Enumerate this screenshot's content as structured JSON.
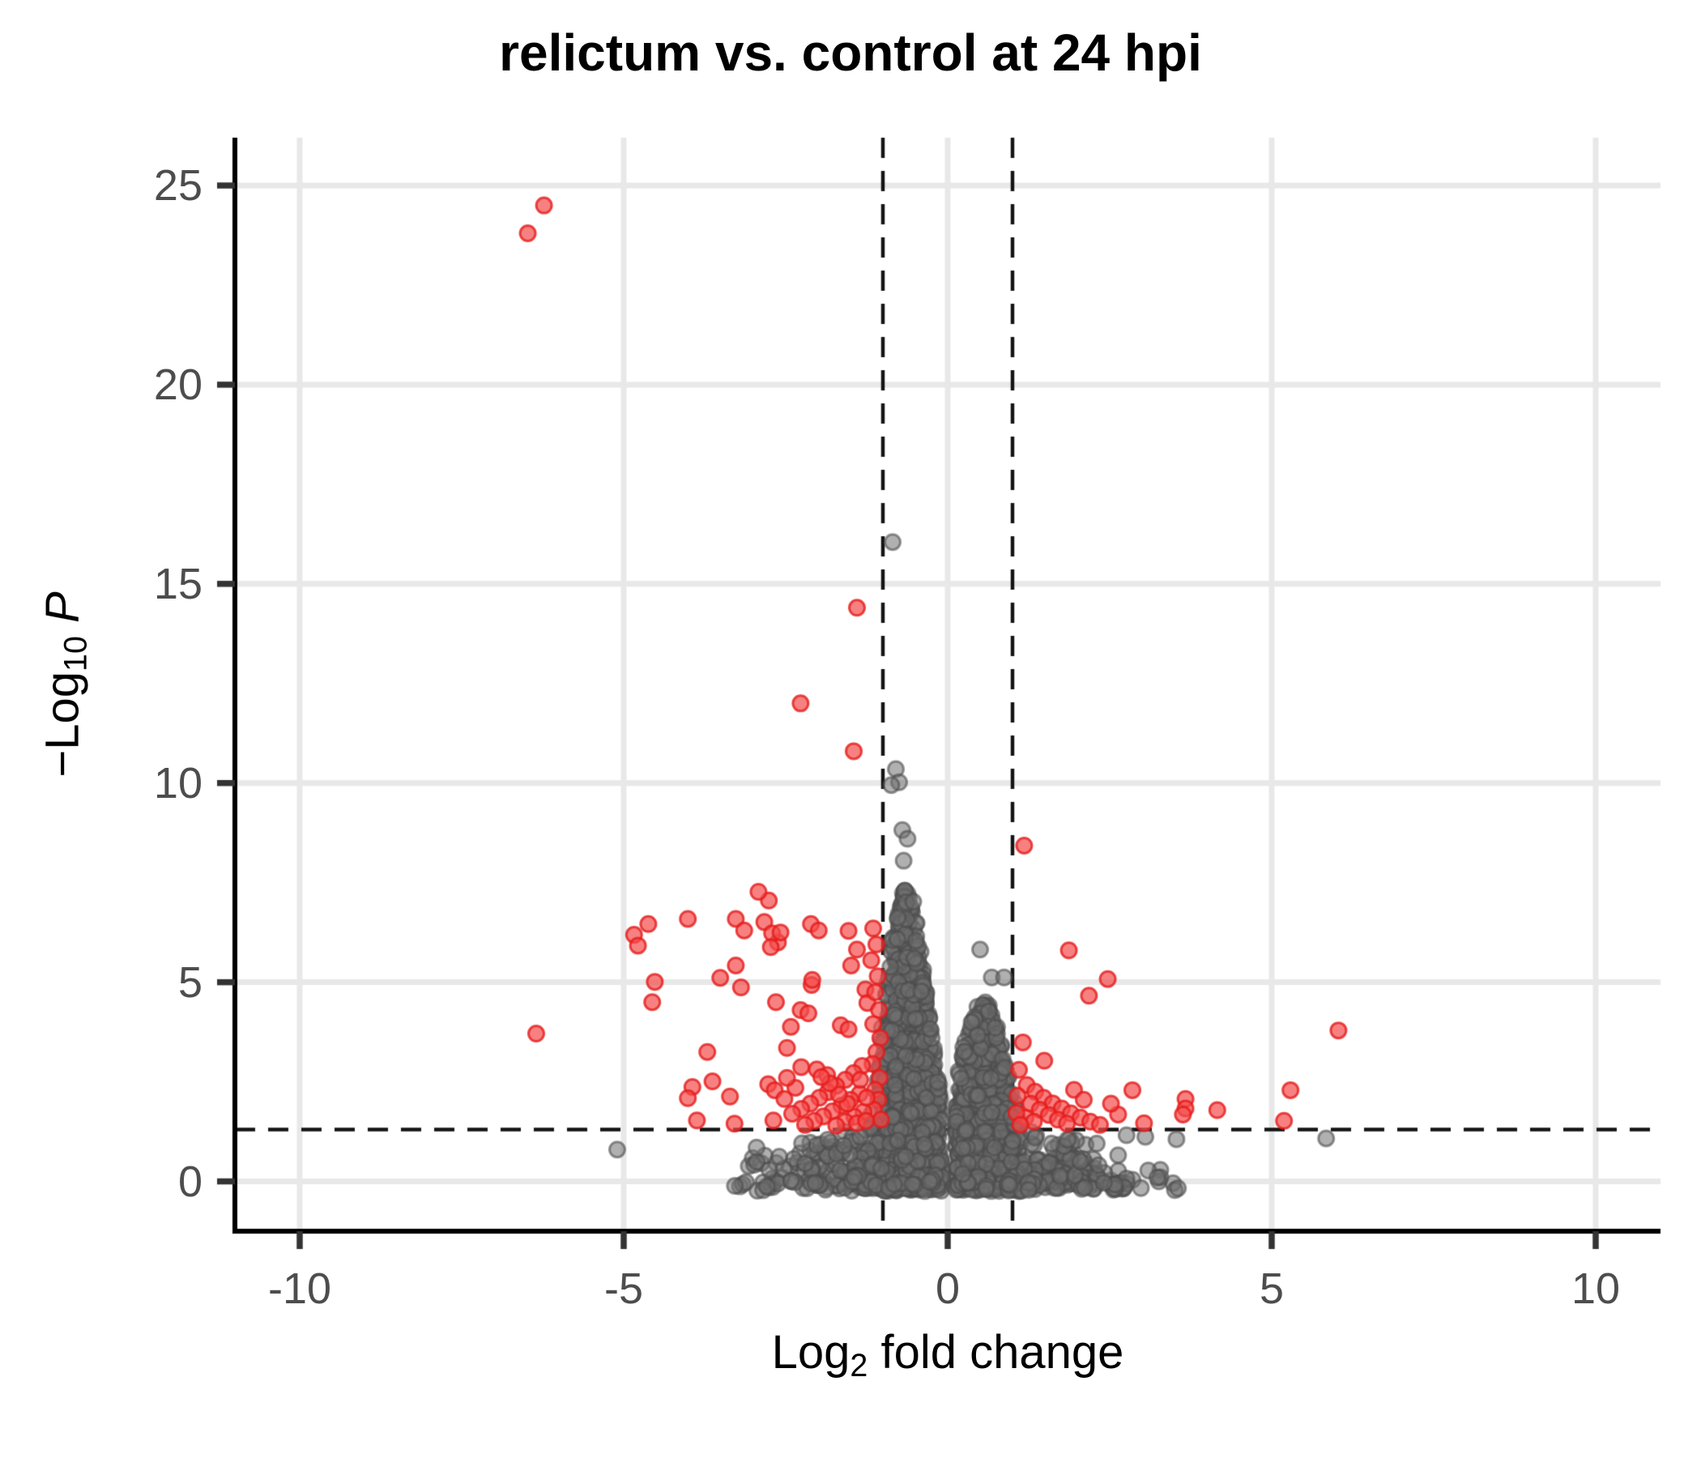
{
  "chart_data": {
    "type": "scatter",
    "subtype": "volcano-plot",
    "title": "relictum vs. control at 24 hpi",
    "x_axis": {
      "label": {
        "main": "Log",
        "sub": "2",
        "tail": " fold change"
      },
      "ticks": [
        -10,
        -5,
        0,
        5,
        10
      ],
      "range": [
        -11,
        11
      ],
      "grid": true
    },
    "y_axis": {
      "label": {
        "minus": "−",
        "main": "Log",
        "sub": "10",
        "tail": "P"
      },
      "ticks": [
        0,
        5,
        10,
        15,
        20,
        25
      ],
      "range": [
        -1.25,
        26.2
      ],
      "grid": true
    },
    "thresholds": {
      "log2fc_cutoffs": [
        -1,
        1
      ],
      "neg_log10_p_cutoff": 1.301
    },
    "legend": "none",
    "colors": {
      "significant_fill": "rgba(243,76,76,0.70)",
      "significant_stroke": "rgba(230,28,28,0.80)",
      "nonsignificant_fill": "rgba(111,111,111,0.55)",
      "nonsignificant_stroke": "rgba(77,77,77,0.60)",
      "gridline": "#E8E8E8",
      "axis_line": "#000000",
      "tick_mark": "#333333",
      "tick_label": "#4D4D4D",
      "threshold_line": "#141414"
    },
    "style": {
      "point_radius": 9.5,
      "point_stroke_width": 3,
      "grid_line_width": 7,
      "axis_line_width": 6,
      "tick_length": 22,
      "tick_width": 4.5,
      "dash_pattern": [
        25,
        16
      ],
      "dash_line_width": 4.5
    },
    "significant_points": [
      [
        -6.23,
        24.5
      ],
      [
        -6.48,
        23.8
      ],
      [
        -1.4,
        14.4
      ],
      [
        -2.27,
        12.0
      ],
      [
        -1.45,
        10.8
      ],
      [
        1.18,
        8.43
      ],
      [
        -4.84,
        6.19
      ],
      [
        -4.62,
        6.46
      ],
      [
        -4.01,
        6.59
      ],
      [
        -4.78,
        5.92
      ],
      [
        -3.27,
        6.59
      ],
      [
        -3.14,
        6.3
      ],
      [
        -2.83,
        6.51
      ],
      [
        -2.76,
        7.05
      ],
      [
        -2.92,
        7.27
      ],
      [
        -2.62,
        6.0
      ],
      [
        -2.71,
        6.23
      ],
      [
        -2.58,
        6.25
      ],
      [
        -2.73,
        5.88
      ],
      [
        -2.11,
        6.46
      ],
      [
        -1.99,
        6.3
      ],
      [
        -1.53,
        6.29
      ],
      [
        -1.4,
        5.82
      ],
      [
        -1.49,
        5.42
      ],
      [
        -3.27,
        5.42
      ],
      [
        -3.51,
        5.11
      ],
      [
        -2.1,
        4.93
      ],
      [
        -4.52,
        5.01
      ],
      [
        -4.56,
        4.5
      ],
      [
        -2.65,
        4.5
      ],
      [
        -2.27,
        4.3
      ],
      [
        -2.15,
        4.22
      ],
      [
        -3.71,
        3.25
      ],
      [
        -2.48,
        3.35
      ],
      [
        -3.94,
        2.37
      ],
      [
        -4.01,
        2.09
      ],
      [
        -3.36,
        2.13
      ],
      [
        -2.77,
        2.44
      ],
      [
        -2.67,
        2.29
      ],
      [
        -6.35,
        3.71
      ],
      [
        -3.19,
        4.87
      ],
      [
        -2.42,
        3.88
      ],
      [
        -3.63,
        2.51
      ],
      [
        -2.52,
        2.07
      ],
      [
        -2.26,
        2.87
      ],
      [
        -2.02,
        2.81
      ],
      [
        -1.86,
        2.67
      ],
      [
        -1.65,
        3.92
      ],
      [
        -1.53,
        3.82
      ],
      [
        -1.27,
        4.82
      ],
      [
        -1.24,
        4.48
      ],
      [
        -2.09,
        5.06
      ],
      [
        -3.87,
        1.53
      ],
      [
        -3.29,
        1.45
      ],
      [
        -2.69,
        1.53
      ],
      [
        -1.15,
        6.35
      ],
      [
        -1.1,
        5.95
      ],
      [
        -1.18,
        5.55
      ],
      [
        -1.08,
        5.15
      ],
      [
        -1.12,
        4.75
      ],
      [
        -1.06,
        4.3
      ],
      [
        -1.15,
        3.95
      ],
      [
        -1.04,
        3.6
      ],
      [
        -1.1,
        3.25
      ],
      [
        -1.16,
        2.95
      ],
      [
        -1.05,
        2.6
      ],
      [
        -1.12,
        2.3
      ],
      [
        -1.07,
        2.05
      ],
      [
        -1.14,
        1.8
      ],
      [
        -1.03,
        1.55
      ],
      [
        -1.32,
        2.9
      ],
      [
        -1.45,
        2.72
      ],
      [
        -1.58,
        2.55
      ],
      [
        -1.72,
        2.4
      ],
      [
        -1.85,
        2.24
      ],
      [
        -1.98,
        2.1
      ],
      [
        -2.12,
        1.95
      ],
      [
        -2.26,
        1.82
      ],
      [
        -2.4,
        1.7
      ],
      [
        -1.36,
        2.2
      ],
      [
        -1.5,
        2.05
      ],
      [
        -1.64,
        1.9
      ],
      [
        -1.78,
        1.76
      ],
      [
        -1.92,
        1.63
      ],
      [
        -2.06,
        1.52
      ],
      [
        -2.2,
        1.42
      ],
      [
        -1.3,
        1.75
      ],
      [
        -1.44,
        1.62
      ],
      [
        -1.58,
        1.5
      ],
      [
        -1.72,
        1.4
      ],
      [
        -1.4,
        1.46
      ],
      [
        -1.26,
        1.52
      ],
      [
        -1.55,
        1.95
      ],
      [
        -1.68,
        2.18
      ],
      [
        -1.82,
        2.46
      ],
      [
        -1.95,
        2.62
      ],
      [
        -2.35,
        2.35
      ],
      [
        -2.48,
        2.6
      ],
      [
        -1.25,
        2.1
      ],
      [
        -1.35,
        2.55
      ],
      [
        1.87,
        5.8
      ],
      [
        2.47,
        5.08
      ],
      [
        2.18,
        4.66
      ],
      [
        1.16,
        3.49
      ],
      [
        1.49,
        3.03
      ],
      [
        2.85,
        2.29
      ],
      [
        3.67,
        2.07
      ],
      [
        3.67,
        1.83
      ],
      [
        3.63,
        1.68
      ],
      [
        4.16,
        1.79
      ],
      [
        3.03,
        1.46
      ],
      [
        2.63,
        1.68
      ],
      [
        6.03,
        3.79
      ],
      [
        5.29,
        2.29
      ],
      [
        5.19,
        1.52
      ],
      [
        1.22,
        2.42
      ],
      [
        1.35,
        2.25
      ],
      [
        1.48,
        2.1
      ],
      [
        1.62,
        1.96
      ],
      [
        1.76,
        1.83
      ],
      [
        1.9,
        1.71
      ],
      [
        2.05,
        1.6
      ],
      [
        2.2,
        1.5
      ],
      [
        2.35,
        1.42
      ],
      [
        1.28,
        1.95
      ],
      [
        1.42,
        1.8
      ],
      [
        1.56,
        1.67
      ],
      [
        1.7,
        1.55
      ],
      [
        1.84,
        1.45
      ],
      [
        1.2,
        1.6
      ],
      [
        1.33,
        1.5
      ],
      [
        2.52,
        1.95
      ],
      [
        1.95,
        2.3
      ],
      [
        2.1,
        2.05
      ],
      [
        1.1,
        2.8
      ],
      [
        1.08,
        2.15
      ],
      [
        1.06,
        1.72
      ],
      [
        1.12,
        1.42
      ]
    ],
    "nonsignificant_outlier_points": [
      [
        -0.85,
        16.05
      ],
      [
        -0.8,
        10.35
      ],
      [
        -0.75,
        10.02
      ],
      [
        -0.87,
        9.95
      ],
      [
        -0.7,
        8.82
      ],
      [
        -0.62,
        8.6
      ],
      [
        -0.68,
        8.05
      ],
      [
        0.5,
        5.82
      ],
      [
        0.68,
        5.12
      ],
      [
        0.87,
        5.12
      ],
      [
        5.84,
        1.08
      ],
      [
        3.53,
        1.06
      ],
      [
        3.05,
        1.12
      ],
      [
        2.76,
        1.16
      ],
      [
        -5.1,
        0.8
      ],
      [
        -2.95,
        0.85
      ],
      [
        -2.6,
        0.62
      ],
      [
        2.3,
        0.95
      ],
      [
        -1.85,
        1.05
      ],
      [
        -1.6,
        0.9
      ],
      [
        1.35,
        1.1
      ],
      [
        1.6,
        0.95
      ],
      [
        1.85,
        1.05
      ],
      [
        -1.35,
        1.12
      ],
      [
        -2.2,
        0.45
      ],
      [
        2.05,
        0.5
      ]
    ],
    "background_cloud": {
      "description": "dense non-significant gene cloud between fold-change cutoffs",
      "seed": 42,
      "components": [
        {
          "n": 1100,
          "x_mean": -0.62,
          "x_sd": 0.3,
          "x_min": -1.06,
          "x_max": -0.1,
          "y_exp": 1.6
        },
        {
          "n": 750,
          "x_mean": 0.55,
          "x_sd": 0.32,
          "x_min": 0.12,
          "x_max": 1.12,
          "y_exp": 1.6
        },
        {
          "n": 750,
          "x_mean": 0.0,
          "x_sd": 1.35,
          "x_min": -3.3,
          "x_max": 3.6,
          "y_exp": 2.2
        }
      ],
      "envelope": {
        "floor": 0.5,
        "left_peak": {
          "height": 7.5,
          "center": -0.64,
          "sd": 0.34
        },
        "right_peak": {
          "height": 4.6,
          "center": 0.55,
          "sd": 0.4
        },
        "wide": {
          "height": 1.7,
          "center": 0,
          "sd": 2.2
        }
      },
      "center_gap": {
        "x_center": 0.03,
        "half_width": 0.095
      }
    }
  }
}
